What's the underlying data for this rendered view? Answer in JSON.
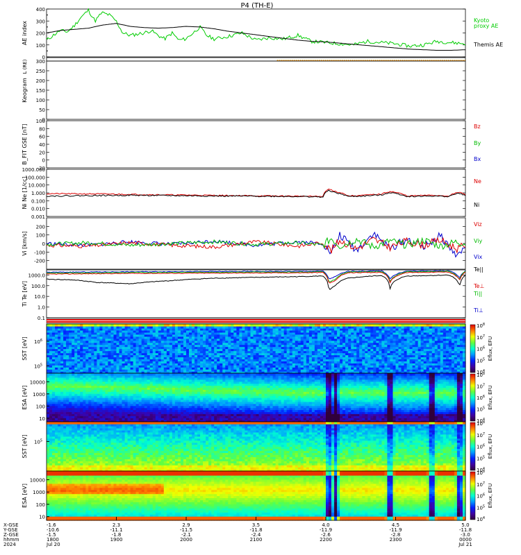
{
  "figure": {
    "title": "P4 (TH-E)"
  },
  "colors": {
    "kyoto": "#00cc00",
    "themis": "#000000",
    "red": "#dd0000",
    "green": "#00bb00",
    "blue": "#0000cc",
    "orange": "#ff9900"
  },
  "colorbar_labels": [
    "Eflux, EFU",
    "Eflux, EFU",
    "Eflux, EFU",
    "Eflux, EFU"
  ],
  "chart_data": [
    {
      "type": "line",
      "panel": "ae",
      "ylabel": "AE index",
      "ylim": [
        0,
        400
      ],
      "yticks": [
        "0",
        "50",
        "100",
        "150",
        "200",
        "250",
        "300",
        "350",
        "400"
      ],
      "series": [
        {
          "name": "Kyoto proxy AE",
          "label_lines": [
            "Kyoto",
            "proxy AE"
          ],
          "color": "#00cc00",
          "x": [
            0,
            0.08,
            0.16,
            0.25,
            0.33,
            0.41,
            0.5,
            0.58,
            0.66,
            0.75,
            0.83,
            0.91,
            1.0,
            1.08,
            1.16,
            1.25,
            1.33,
            1.41,
            1.5,
            1.58,
            1.66,
            1.75,
            1.83,
            1.91,
            2.0,
            2.16,
            2.33,
            2.5,
            2.66,
            2.83,
            3.0,
            3.16,
            3.33,
            3.5,
            3.66,
            3.83,
            4.0,
            4.16,
            4.33,
            4.5,
            4.66,
            4.83,
            5.0
          ],
          "y": [
            140,
            180,
            220,
            210,
            260,
            330,
            390,
            300,
            370,
            350,
            300,
            200,
            180,
            190,
            200,
            220,
            180,
            150,
            200,
            140,
            150,
            200,
            250,
            180,
            150,
            170,
            200,
            140,
            160,
            150,
            180,
            130,
            120,
            110,
            100,
            130,
            120,
            110,
            90,
            100,
            130,
            120,
            110
          ]
        },
        {
          "name": "Themis AE",
          "label_lines": [
            "Themis AE"
          ],
          "color": "#000000",
          "x": [
            0,
            0.16,
            0.33,
            0.5,
            0.66,
            0.83,
            1.0,
            1.16,
            1.33,
            1.5,
            1.66,
            1.83,
            2.0,
            2.16,
            2.33,
            2.5,
            2.66,
            2.83,
            3.0,
            3.16,
            3.33,
            3.5,
            3.66,
            3.83,
            4.0,
            4.16,
            4.33,
            4.5,
            4.66,
            4.83,
            5.0
          ],
          "y": [
            200,
            220,
            230,
            240,
            265,
            280,
            255,
            245,
            240,
            245,
            255,
            250,
            235,
            215,
            200,
            185,
            170,
            155,
            140,
            130,
            125,
            115,
            105,
            95,
            85,
            75,
            65,
            60,
            55,
            55,
            60
          ]
        }
      ]
    },
    {
      "type": "line",
      "panel": "ll",
      "ylabel": "L (RE)",
      "series": [
        {
          "name": "L",
          "color": "#ff9900",
          "x": [
            2.75,
            5.0
          ],
          "y": [
            1,
            1
          ]
        }
      ]
    },
    {
      "type": "line",
      "panel": "keogram",
      "ylabel": "Keogram",
      "ylim": [
        0,
        300
      ],
      "yticks": [
        "0",
        "50",
        "100",
        "150",
        "200",
        "250",
        "300"
      ],
      "series": []
    },
    {
      "type": "line",
      "panel": "bfield",
      "ylabel": "B_FIT GSE [nT]",
      "yticks": [
        "-20",
        "0",
        "20",
        "40",
        "60",
        "80",
        "100"
      ],
      "series": [
        {
          "name": "Bz",
          "color": "#dd0000",
          "x": [],
          "y": []
        },
        {
          "name": "By",
          "color": "#00bb00",
          "x": [],
          "y": []
        },
        {
          "name": "Bx",
          "color": "#0000cc",
          "x": [],
          "y": []
        }
      ]
    },
    {
      "type": "line",
      "panel": "density",
      "ylabel": "Ni Ne [1/cc]",
      "scale": "log",
      "ylim": [
        0.001,
        1000
      ],
      "yticks": [
        "0.001",
        "0.010",
        "0.100",
        "1.000",
        "10.000",
        "100.000",
        "1000.000"
      ],
      "series": [
        {
          "name": "Ne",
          "color": "#dd0000",
          "x": [
            0,
            0.5,
            1.0,
            1.5,
            2.0,
            2.5,
            3.0,
            3.3,
            3.37,
            3.45,
            3.6,
            3.8,
            4.0,
            4.1,
            4.3,
            4.6,
            4.8,
            4.93,
            5.0
          ],
          "y": [
            0.8,
            0.75,
            0.65,
            0.55,
            0.48,
            0.42,
            0.38,
            0.35,
            3.0,
            1.5,
            0.4,
            0.5,
            0.7,
            1.5,
            0.4,
            0.5,
            0.4,
            1.2,
            0.5
          ]
        },
        {
          "name": "Ni",
          "color": "#000000",
          "x": [
            0,
            0.5,
            1.0,
            1.5,
            2.0,
            2.5,
            3.0,
            3.3,
            3.37,
            3.45,
            3.6,
            3.8,
            4.0,
            4.1,
            4.3,
            4.6,
            4.8,
            4.93,
            5.0
          ],
          "y": [
            0.4,
            0.45,
            0.5,
            0.45,
            0.4,
            0.38,
            0.35,
            0.3,
            2.0,
            1.0,
            0.35,
            0.4,
            0.55,
            1.1,
            0.35,
            0.4,
            0.35,
            0.9,
            0.4
          ]
        }
      ]
    },
    {
      "type": "line",
      "panel": "velocity",
      "ylabel": "Vi [km/s]",
      "ylim": [
        -300,
        300
      ],
      "yticks": [
        "-200",
        "-100",
        "0",
        "100",
        "200"
      ],
      "series": [
        {
          "name": "Viz",
          "color": "#dd0000",
          "x": [
            0,
            0.5,
            1.0,
            1.5,
            2.0,
            2.5,
            3.0,
            3.3,
            3.4,
            3.5,
            3.7,
            3.9,
            4.1,
            4.3,
            4.5,
            4.7,
            4.9,
            5.0
          ],
          "y": [
            -20,
            -30,
            10,
            -20,
            -40,
            20,
            -30,
            10,
            -80,
            40,
            -60,
            50,
            -40,
            30,
            -20,
            40,
            -60,
            -20
          ]
        },
        {
          "name": "Viy",
          "color": "#00bb00",
          "x": [
            0,
            0.5,
            1.0,
            1.5,
            2.0,
            2.5,
            3.0,
            3.3,
            3.4,
            3.5,
            3.7,
            3.9,
            4.1,
            4.3,
            4.5,
            4.7,
            4.9,
            5.0
          ],
          "y": [
            -10,
            10,
            -20,
            0,
            20,
            -10,
            10,
            -20,
            60,
            -30,
            50,
            -40,
            30,
            -20,
            40,
            -30,
            20,
            0
          ]
        },
        {
          "name": "Vix",
          "color": "#0000cc",
          "x": [
            0,
            0.5,
            1.0,
            1.5,
            2.0,
            2.5,
            3.0,
            3.3,
            3.4,
            3.5,
            3.7,
            3.9,
            4.1,
            4.3,
            4.5,
            4.7,
            4.9,
            5.0
          ],
          "y": [
            0,
            -20,
            20,
            -10,
            30,
            -20,
            20,
            0,
            -120,
            100,
            -80,
            120,
            -60,
            50,
            -40,
            90,
            -150,
            -30
          ]
        }
      ]
    },
    {
      "type": "line",
      "panel": "temperature",
      "ylabel": "Ti Te [eV]",
      "scale": "log",
      "ylim": [
        0.1,
        3000
      ],
      "yticks": [
        "0.1",
        "1.0",
        "10.0",
        "100.0",
        "1000.0"
      ],
      "series": [
        {
          "name": "Te||",
          "color": "#000000",
          "x": [
            0,
            0.3,
            0.6,
            1.0,
            1.5,
            2.0,
            2.5,
            3.0,
            3.3,
            3.37,
            3.45,
            3.6,
            4.0,
            4.1,
            4.3,
            4.6,
            4.8,
            4.93,
            5.0
          ],
          "y": [
            400,
            350,
            200,
            150,
            300,
            500,
            600,
            700,
            800,
            30,
            100,
            500,
            900,
            50,
            800,
            900,
            1000,
            80,
            900
          ]
        },
        {
          "name": "Te⊥",
          "color": "#dd0000",
          "x": [
            0,
            0.5,
            1.0,
            2.0,
            3.0,
            3.3,
            3.37,
            3.45,
            3.6,
            4.0,
            4.1,
            4.3,
            4.6,
            4.8,
            4.93,
            5.0
          ],
          "y": [
            1200,
            1300,
            1400,
            1500,
            1600,
            1700,
            150,
            300,
            1600,
            1800,
            200,
            1700,
            1800,
            1900,
            300,
            1800
          ]
        },
        {
          "name": "Ti||",
          "color": "#00bb00",
          "x": [
            0,
            0.5,
            1.0,
            2.0,
            3.0,
            3.3,
            3.37,
            3.45,
            3.6,
            4.0,
            4.1,
            4.3,
            4.6,
            4.8,
            4.93,
            5.0
          ],
          "y": [
            1500,
            1600,
            1700,
            1800,
            1900,
            2000,
            200,
            400,
            1900,
            2100,
            250,
            2000,
            2100,
            2200,
            350,
            2100
          ]
        },
        {
          "name": "Ti⊥",
          "color": "#0000cc",
          "x": [
            0,
            0.5,
            1.0,
            2.0,
            3.0,
            3.3,
            3.37,
            3.45,
            3.6,
            4.0,
            4.1,
            4.3,
            4.6,
            4.8,
            4.93,
            5.0
          ],
          "y": [
            1800,
            1900,
            2000,
            2100,
            2200,
            2300,
            400,
            700,
            2200,
            2400,
            450,
            2300,
            2400,
            2500,
            500,
            2400
          ]
        }
      ]
    },
    {
      "type": "heatmap",
      "panel": "sst_ion",
      "ylabel": "SST [eV]",
      "yticks": [
        "10^5",
        "10^6"
      ],
      "colorbar_ticks": [
        "10^4",
        "10^5",
        "10^6",
        "10^7",
        "10^8"
      ]
    },
    {
      "type": "heatmap",
      "panel": "esa_ion",
      "ylabel": "ESA [eV]",
      "yticks": [
        "10",
        "100",
        "1000",
        "10000"
      ],
      "colorbar_ticks": [
        "10^4",
        "10^5",
        "10^6",
        "10^7",
        "10^8"
      ]
    },
    {
      "type": "heatmap",
      "panel": "sst_elec",
      "ylabel": "SST [eV]",
      "yticks": [
        "10^5"
      ],
      "colorbar_ticks": [
        "10^4",
        "10^5",
        "10^6",
        "10^7",
        "10^8"
      ]
    },
    {
      "type": "heatmap",
      "panel": "esa_elec",
      "ylabel": "ESA [eV]",
      "yticks": [
        "10",
        "100",
        "1000",
        "10000"
      ],
      "colorbar_ticks": [
        "10^4",
        "10^5",
        "10^6",
        "10^7",
        "10^8"
      ]
    }
  ],
  "xaxis": {
    "row_labels": [
      "X-GSE",
      "Y-GSE",
      "Z-GSE",
      "hhmm",
      "2024"
    ],
    "ticks": [
      {
        "rows": [
          "-1.6",
          "-10.6",
          "-1.5",
          "1800",
          "Jul 20"
        ]
      },
      {
        "rows": [
          "2.3",
          "-11.1",
          "-1.8",
          "1900",
          ""
        ]
      },
      {
        "rows": [
          "2.9",
          "-11.5",
          "-2.1",
          "2000",
          ""
        ]
      },
      {
        "rows": [
          "3.5",
          "-11.8",
          "-2.4",
          "2100",
          ""
        ]
      },
      {
        "rows": [
          "4.0",
          "-11.9",
          "-2.6",
          "2200",
          ""
        ]
      },
      {
        "rows": [
          "4.5",
          "-11.9",
          "-2.8",
          "2300",
          ""
        ]
      },
      {
        "rows": [
          "5.0",
          "-11.8",
          "-3.0",
          "0000",
          "Jul 21"
        ]
      }
    ]
  }
}
